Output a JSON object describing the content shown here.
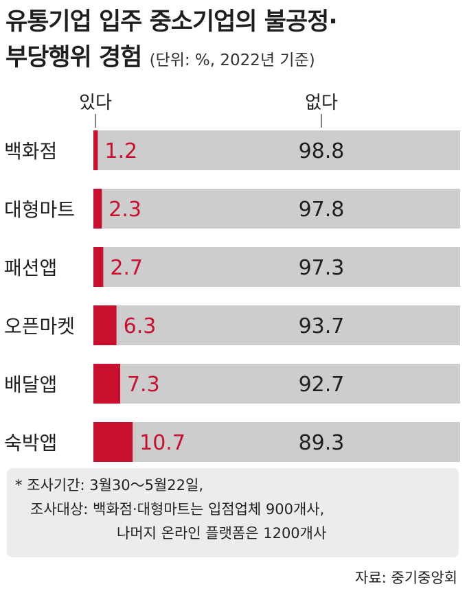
{
  "title_line1": "유통기업 입주 중소기업의 불공정·",
  "title_line2": "부당행위 경험",
  "unit_note": "(단위: %, 2022년 기준)",
  "chart_data": {
    "type": "bar",
    "stacked": true,
    "orientation": "horizontal",
    "categories": [
      "백화점",
      "대형마트",
      "패션앱",
      "오픈마켓",
      "배달앱",
      "숙박앱"
    ],
    "series": [
      {
        "name": "있다",
        "values": [
          1.2,
          2.3,
          2.7,
          6.3,
          7.3,
          10.7
        ],
        "color": "#c8102e"
      },
      {
        "name": "없다",
        "values": [
          98.8,
          97.8,
          97.3,
          93.7,
          92.7,
          89.3
        ],
        "color": "#cdcdcd"
      }
    ],
    "xlim": [
      0,
      100
    ],
    "legend": "top"
  },
  "footnote": {
    "line1": "* 조사기간: 3월30～5월22일,",
    "line2": "조사대상: 백화점·대형마트는 입점업체 900개사,",
    "line3": "나머지 온라인 플랫폼은 1200개사"
  },
  "source": "자료: 중기중앙회"
}
